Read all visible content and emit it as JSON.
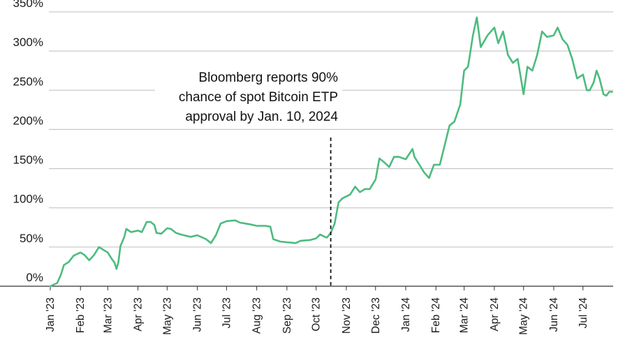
{
  "chart_data": {
    "type": "line",
    "title": "",
    "xlabel": "",
    "ylabel": "",
    "ylim": [
      0,
      350
    ],
    "y_ticks": [
      "0%",
      "50%",
      "100%",
      "150%",
      "200%",
      "250%",
      "300%",
      "350%"
    ],
    "x_ticks": [
      "Jan '23",
      "Feb '23",
      "Mar '23",
      "Apr '23",
      "May '23",
      "Jun '23",
      "Jul '23",
      "Aug '23",
      "Sep '23",
      "Oct '23",
      "Nov '23",
      "Dec '23",
      "Jan '24",
      "Feb '24",
      "Mar '24",
      "Apr '24",
      "May '24",
      "Jun '24",
      "Jul '24"
    ],
    "grid": "horizontal",
    "line_color": "#4cbb7f",
    "annotation": {
      "lines": [
        "Bloomberg reports 90%",
        "chance of spot Bitcoin ETP",
        "approval by Jan. 10, 2024"
      ],
      "date": "2023-10-16",
      "style": "dashed vertical line"
    },
    "series": [
      {
        "name": "",
        "points": [
          [
            "2023-01-01",
            0
          ],
          [
            "2023-01-08",
            4
          ],
          [
            "2023-01-12",
            15
          ],
          [
            "2023-01-15",
            27
          ],
          [
            "2023-01-20",
            31
          ],
          [
            "2023-01-25",
            39
          ],
          [
            "2023-02-01",
            43
          ],
          [
            "2023-02-05",
            40
          ],
          [
            "2023-02-10",
            33
          ],
          [
            "2023-02-15",
            40
          ],
          [
            "2023-02-20",
            50
          ],
          [
            "2023-02-25",
            46
          ],
          [
            "2023-03-01",
            43
          ],
          [
            "2023-03-05",
            35
          ],
          [
            "2023-03-08",
            30
          ],
          [
            "2023-03-10",
            22
          ],
          [
            "2023-03-12",
            31
          ],
          [
            "2023-03-14",
            51
          ],
          [
            "2023-03-18",
            63
          ],
          [
            "2023-03-20",
            73
          ],
          [
            "2023-03-25",
            69
          ],
          [
            "2023-04-01",
            71
          ],
          [
            "2023-04-05",
            69
          ],
          [
            "2023-04-10",
            82
          ],
          [
            "2023-04-14",
            82
          ],
          [
            "2023-04-18",
            78
          ],
          [
            "2023-04-20",
            68
          ],
          [
            "2023-04-25",
            67
          ],
          [
            "2023-05-01",
            74
          ],
          [
            "2023-05-05",
            73
          ],
          [
            "2023-05-10",
            68
          ],
          [
            "2023-05-15",
            66
          ],
          [
            "2023-05-25",
            63
          ],
          [
            "2023-06-01",
            65
          ],
          [
            "2023-06-10",
            60
          ],
          [
            "2023-06-15",
            55
          ],
          [
            "2023-06-20",
            65
          ],
          [
            "2023-06-25",
            80
          ],
          [
            "2023-07-01",
            83
          ],
          [
            "2023-07-10",
            84
          ],
          [
            "2023-07-15",
            81
          ],
          [
            "2023-07-25",
            79
          ],
          [
            "2023-08-01",
            77
          ],
          [
            "2023-08-10",
            77
          ],
          [
            "2023-08-15",
            76
          ],
          [
            "2023-08-18",
            60
          ],
          [
            "2023-08-25",
            57
          ],
          [
            "2023-09-01",
            56
          ],
          [
            "2023-09-10",
            55
          ],
          [
            "2023-09-15",
            58
          ],
          [
            "2023-09-25",
            59
          ],
          [
            "2023-10-01",
            61
          ],
          [
            "2023-10-05",
            66
          ],
          [
            "2023-10-10",
            63
          ],
          [
            "2023-10-12",
            62
          ],
          [
            "2023-10-16",
            68
          ],
          [
            "2023-10-20",
            80
          ],
          [
            "2023-10-24",
            107
          ],
          [
            "2023-10-28",
            112
          ],
          [
            "2023-11-05",
            117
          ],
          [
            "2023-11-10",
            127
          ],
          [
            "2023-11-15",
            120
          ],
          [
            "2023-11-20",
            124
          ],
          [
            "2023-11-25",
            124
          ],
          [
            "2023-12-01",
            136
          ],
          [
            "2023-12-05",
            163
          ],
          [
            "2023-12-10",
            158
          ],
          [
            "2023-12-15",
            152
          ],
          [
            "2023-12-20",
            165
          ],
          [
            "2023-12-25",
            165
          ],
          [
            "2024-01-01",
            162
          ],
          [
            "2024-01-08",
            175
          ],
          [
            "2024-01-10",
            165
          ],
          [
            "2024-01-15",
            155
          ],
          [
            "2024-01-20",
            145
          ],
          [
            "2024-01-25",
            138
          ],
          [
            "2024-01-30",
            155
          ],
          [
            "2024-02-05",
            155
          ],
          [
            "2024-02-10",
            180
          ],
          [
            "2024-02-15",
            205
          ],
          [
            "2024-02-20",
            210
          ],
          [
            "2024-02-26",
            232
          ],
          [
            "2024-03-01",
            275
          ],
          [
            "2024-03-05",
            280
          ],
          [
            "2024-03-10",
            320
          ],
          [
            "2024-03-14",
            343
          ],
          [
            "2024-03-18",
            305
          ],
          [
            "2024-03-25",
            320
          ],
          [
            "2024-04-01",
            330
          ],
          [
            "2024-04-05",
            310
          ],
          [
            "2024-04-10",
            325
          ],
          [
            "2024-04-15",
            295
          ],
          [
            "2024-04-20",
            285
          ],
          [
            "2024-04-25",
            290
          ],
          [
            "2024-05-01",
            245
          ],
          [
            "2024-05-05",
            280
          ],
          [
            "2024-05-10",
            275
          ],
          [
            "2024-05-15",
            295
          ],
          [
            "2024-05-20",
            325
          ],
          [
            "2024-05-25",
            318
          ],
          [
            "2024-06-01",
            320
          ],
          [
            "2024-06-05",
            330
          ],
          [
            "2024-06-10",
            315
          ],
          [
            "2024-06-15",
            308
          ],
          [
            "2024-06-20",
            290
          ],
          [
            "2024-06-25",
            265
          ],
          [
            "2024-07-01",
            270
          ],
          [
            "2024-07-05",
            250
          ],
          [
            "2024-07-08",
            250
          ],
          [
            "2024-07-12",
            260
          ],
          [
            "2024-07-15",
            275
          ],
          [
            "2024-07-18",
            265
          ],
          [
            "2024-07-22",
            245
          ],
          [
            "2024-07-25",
            243
          ],
          [
            "2024-07-28",
            248
          ],
          [
            "2024-07-31",
            248
          ]
        ]
      }
    ]
  }
}
